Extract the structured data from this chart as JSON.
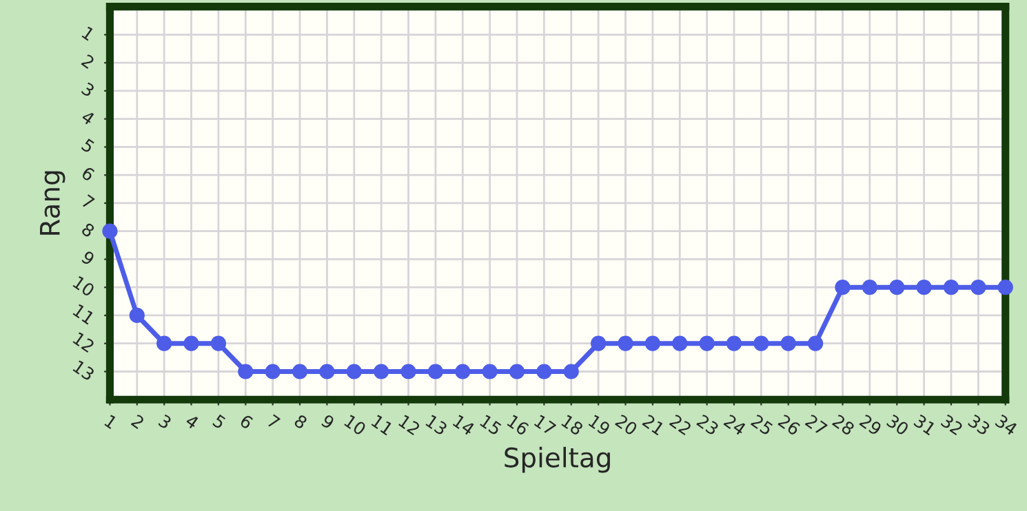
{
  "chart_data": {
    "type": "line",
    "xlabel": "Spieltag",
    "ylabel": "Rang",
    "x": [
      1,
      2,
      3,
      4,
      5,
      6,
      7,
      8,
      9,
      10,
      11,
      12,
      13,
      14,
      15,
      16,
      17,
      18,
      19,
      20,
      21,
      22,
      23,
      24,
      25,
      26,
      27,
      28,
      29,
      30,
      31,
      32,
      33,
      34
    ],
    "series": [
      {
        "color": "#4d5de8",
        "values": [
          8,
          11,
          12,
          12,
          12,
          13,
          13,
          13,
          13,
          13,
          13,
          13,
          13,
          13,
          13,
          13,
          13,
          13,
          12,
          12,
          12,
          12,
          12,
          12,
          12,
          12,
          12,
          10,
          10,
          10,
          10,
          10,
          10,
          10
        ]
      }
    ],
    "xlim": [
      1,
      34
    ],
    "ylim": [
      14,
      0
    ],
    "xticks": [
      1,
      2,
      3,
      4,
      5,
      6,
      7,
      8,
      9,
      10,
      11,
      12,
      13,
      14,
      15,
      16,
      17,
      18,
      19,
      20,
      21,
      22,
      23,
      24,
      25,
      26,
      27,
      28,
      29,
      30,
      31,
      32,
      33,
      34
    ],
    "yticks": [
      1,
      2,
      3,
      4,
      5,
      6,
      7,
      8,
      9,
      10,
      11,
      12,
      13
    ],
    "grid": true,
    "marker": "circle",
    "line_style": "solid"
  }
}
